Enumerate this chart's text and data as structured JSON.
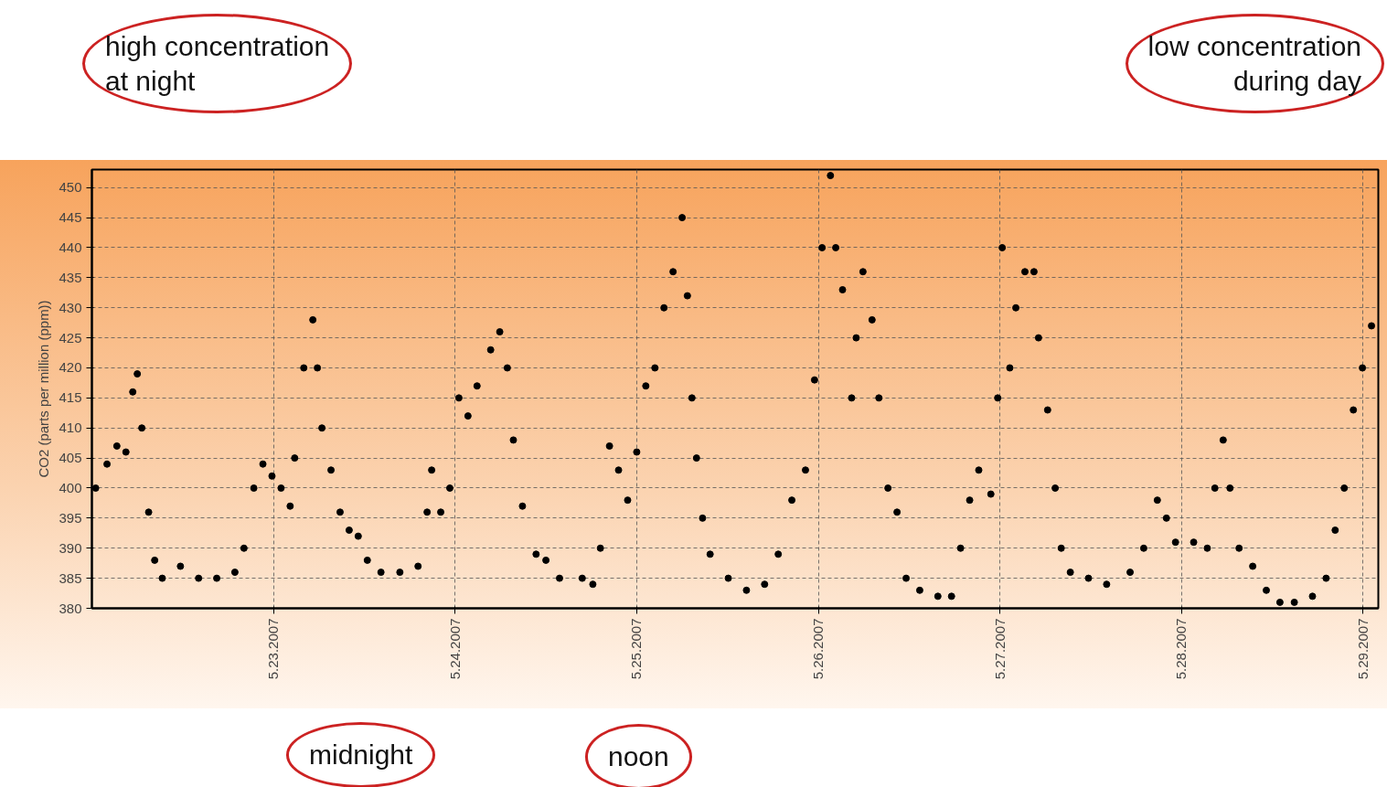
{
  "chart_data": {
    "type": "scatter",
    "ylabel": "CO2 (parts per million (ppm))",
    "annotations": [
      "high concentration\nat night",
      "low concentration\nduring day",
      "midnight",
      "noon"
    ],
    "x": [
      "2007-05-22T00:30",
      "2007-05-22T02:00",
      "2007-05-22T03:18",
      "2007-05-22T04:30",
      "2007-05-22T05:24",
      "2007-05-22T06:00",
      "2007-05-22T06:36",
      "2007-05-22T07:30",
      "2007-05-22T08:18",
      "2007-05-22T09:18",
      "2007-05-22T11:42",
      "2007-05-22T14:06",
      "2007-05-22T16:30",
      "2007-05-22T18:54",
      "2007-05-22T20:06",
      "2007-05-22T21:24",
      "2007-05-22T22:36",
      "2007-05-22T23:48",
      "2007-05-23T01:00",
      "2007-05-23T02:12",
      "2007-05-23T02:48",
      "2007-05-23T04:00",
      "2007-05-23T05:12",
      "2007-05-23T05:48",
      "2007-05-23T06:24",
      "2007-05-23T07:36",
      "2007-05-23T08:48",
      "2007-05-23T10:00",
      "2007-05-23T11:12",
      "2007-05-23T12:24",
      "2007-05-23T14:12",
      "2007-05-23T16:42",
      "2007-05-23T19:06",
      "2007-05-23T20:18",
      "2007-05-23T20:54",
      "2007-05-23T22:06",
      "2007-05-23T23:18",
      "2007-05-24T00:30",
      "2007-05-24T01:42",
      "2007-05-24T02:54",
      "2007-05-24T04:42",
      "2007-05-24T05:54",
      "2007-05-24T06:54",
      "2007-05-24T07:42",
      "2007-05-24T08:54",
      "2007-05-24T10:42",
      "2007-05-24T12:00",
      "2007-05-24T13:48",
      "2007-05-24T16:48",
      "2007-05-24T18:12",
      "2007-05-24T19:12",
      "2007-05-24T20:24",
      "2007-05-24T21:36",
      "2007-05-24T22:48",
      "2007-05-25T00:00",
      "2007-05-25T01:12",
      "2007-05-25T02:24",
      "2007-05-25T03:36",
      "2007-05-25T04:48",
      "2007-05-25T06:00",
      "2007-05-25T06:42",
      "2007-05-25T07:18",
      "2007-05-25T07:54",
      "2007-05-25T08:42",
      "2007-05-25T09:42",
      "2007-05-25T12:06",
      "2007-05-25T14:30",
      "2007-05-25T16:54",
      "2007-05-25T18:42",
      "2007-05-25T20:30",
      "2007-05-25T22:18",
      "2007-05-25T23:30",
      "2007-05-26T00:30",
      "2007-05-26T01:36",
      "2007-05-26T02:18",
      "2007-05-26T03:12",
      "2007-05-26T04:24",
      "2007-05-26T05:00",
      "2007-05-26T05:54",
      "2007-05-26T07:06",
      "2007-05-26T08:00",
      "2007-05-26T09:12",
      "2007-05-26T10:24",
      "2007-05-26T11:36",
      "2007-05-26T13:24",
      "2007-05-26T15:48",
      "2007-05-26T17:36",
      "2007-05-26T18:48",
      "2007-05-26T20:00",
      "2007-05-26T21:12",
      "2007-05-26T22:48",
      "2007-05-26T23:42",
      "2007-05-27T00:18",
      "2007-05-27T01:18",
      "2007-05-27T02:06",
      "2007-05-27T03:18",
      "2007-05-27T04:30",
      "2007-05-27T05:06",
      "2007-05-27T06:18",
      "2007-05-27T07:18",
      "2007-05-27T08:06",
      "2007-05-27T09:18",
      "2007-05-27T11:42",
      "2007-05-27T14:06",
      "2007-05-27T17:12",
      "2007-05-27T19:00",
      "2007-05-27T20:48",
      "2007-05-27T22:00",
      "2007-05-27T23:12",
      "2007-05-28T01:36",
      "2007-05-28T03:24",
      "2007-05-28T04:24",
      "2007-05-28T05:30",
      "2007-05-28T06:24",
      "2007-05-28T07:36",
      "2007-05-28T09:24",
      "2007-05-28T11:12",
      "2007-05-28T13:00",
      "2007-05-28T14:54",
      "2007-05-28T17:18",
      "2007-05-28T19:06",
      "2007-05-28T20:18",
      "2007-05-28T21:30",
      "2007-05-28T22:42",
      "2007-05-28T23:54",
      "2007-05-29T01:06"
    ],
    "series": [
      {
        "color": "#000000",
        "values": [
          400,
          404,
          407,
          406,
          416,
          419,
          410,
          396,
          388,
          385,
          387,
          385,
          385,
          386,
          390,
          400,
          404,
          402,
          400,
          397,
          405,
          420,
          428,
          420,
          410,
          403,
          396,
          393,
          392,
          388,
          386,
          386,
          387,
          396,
          403,
          396,
          400,
          415,
          412,
          417,
          423,
          426,
          420,
          408,
          397,
          389,
          388,
          385,
          385,
          384,
          390,
          407,
          403,
          398,
          406,
          417,
          420,
          430,
          436,
          445,
          432,
          415,
          405,
          395,
          389,
          385,
          383,
          384,
          389,
          398,
          403,
          418,
          440,
          452,
          440,
          433,
          415,
          425,
          436,
          428,
          415,
          400,
          396,
          385,
          383,
          382,
          382,
          390,
          398,
          403,
          399,
          415,
          440,
          420,
          430,
          436,
          436,
          425,
          413,
          400,
          390,
          386,
          385,
          384,
          386,
          390,
          398,
          395,
          391,
          391,
          390,
          400,
          408,
          400,
          390,
          387,
          383,
          381,
          381,
          382,
          385,
          393,
          400,
          413,
          420,
          427
        ]
      }
    ],
    "xlim": [
      "2007-05-22T00:00",
      "2007-05-29T02:00"
    ],
    "xticks": [
      {
        "value": "2007-05-23",
        "label": "5.23.2007"
      },
      {
        "value": "2007-05-24",
        "label": "5.24.2007"
      },
      {
        "value": "2007-05-25",
        "label": "5.25.2007"
      },
      {
        "value": "2007-05-26",
        "label": "5.26.2007"
      },
      {
        "value": "2007-05-27",
        "label": "5.27.2007"
      },
      {
        "value": "2007-05-28",
        "label": "5.28.2007"
      },
      {
        "value": "2007-05-29",
        "label": "5.29.2007"
      }
    ],
    "ylim": [
      380,
      453
    ],
    "yticks": [
      380,
      385,
      390,
      395,
      400,
      405,
      410,
      415,
      420,
      425,
      430,
      435,
      440,
      445,
      450
    ],
    "grid": true,
    "marker": "circle"
  }
}
